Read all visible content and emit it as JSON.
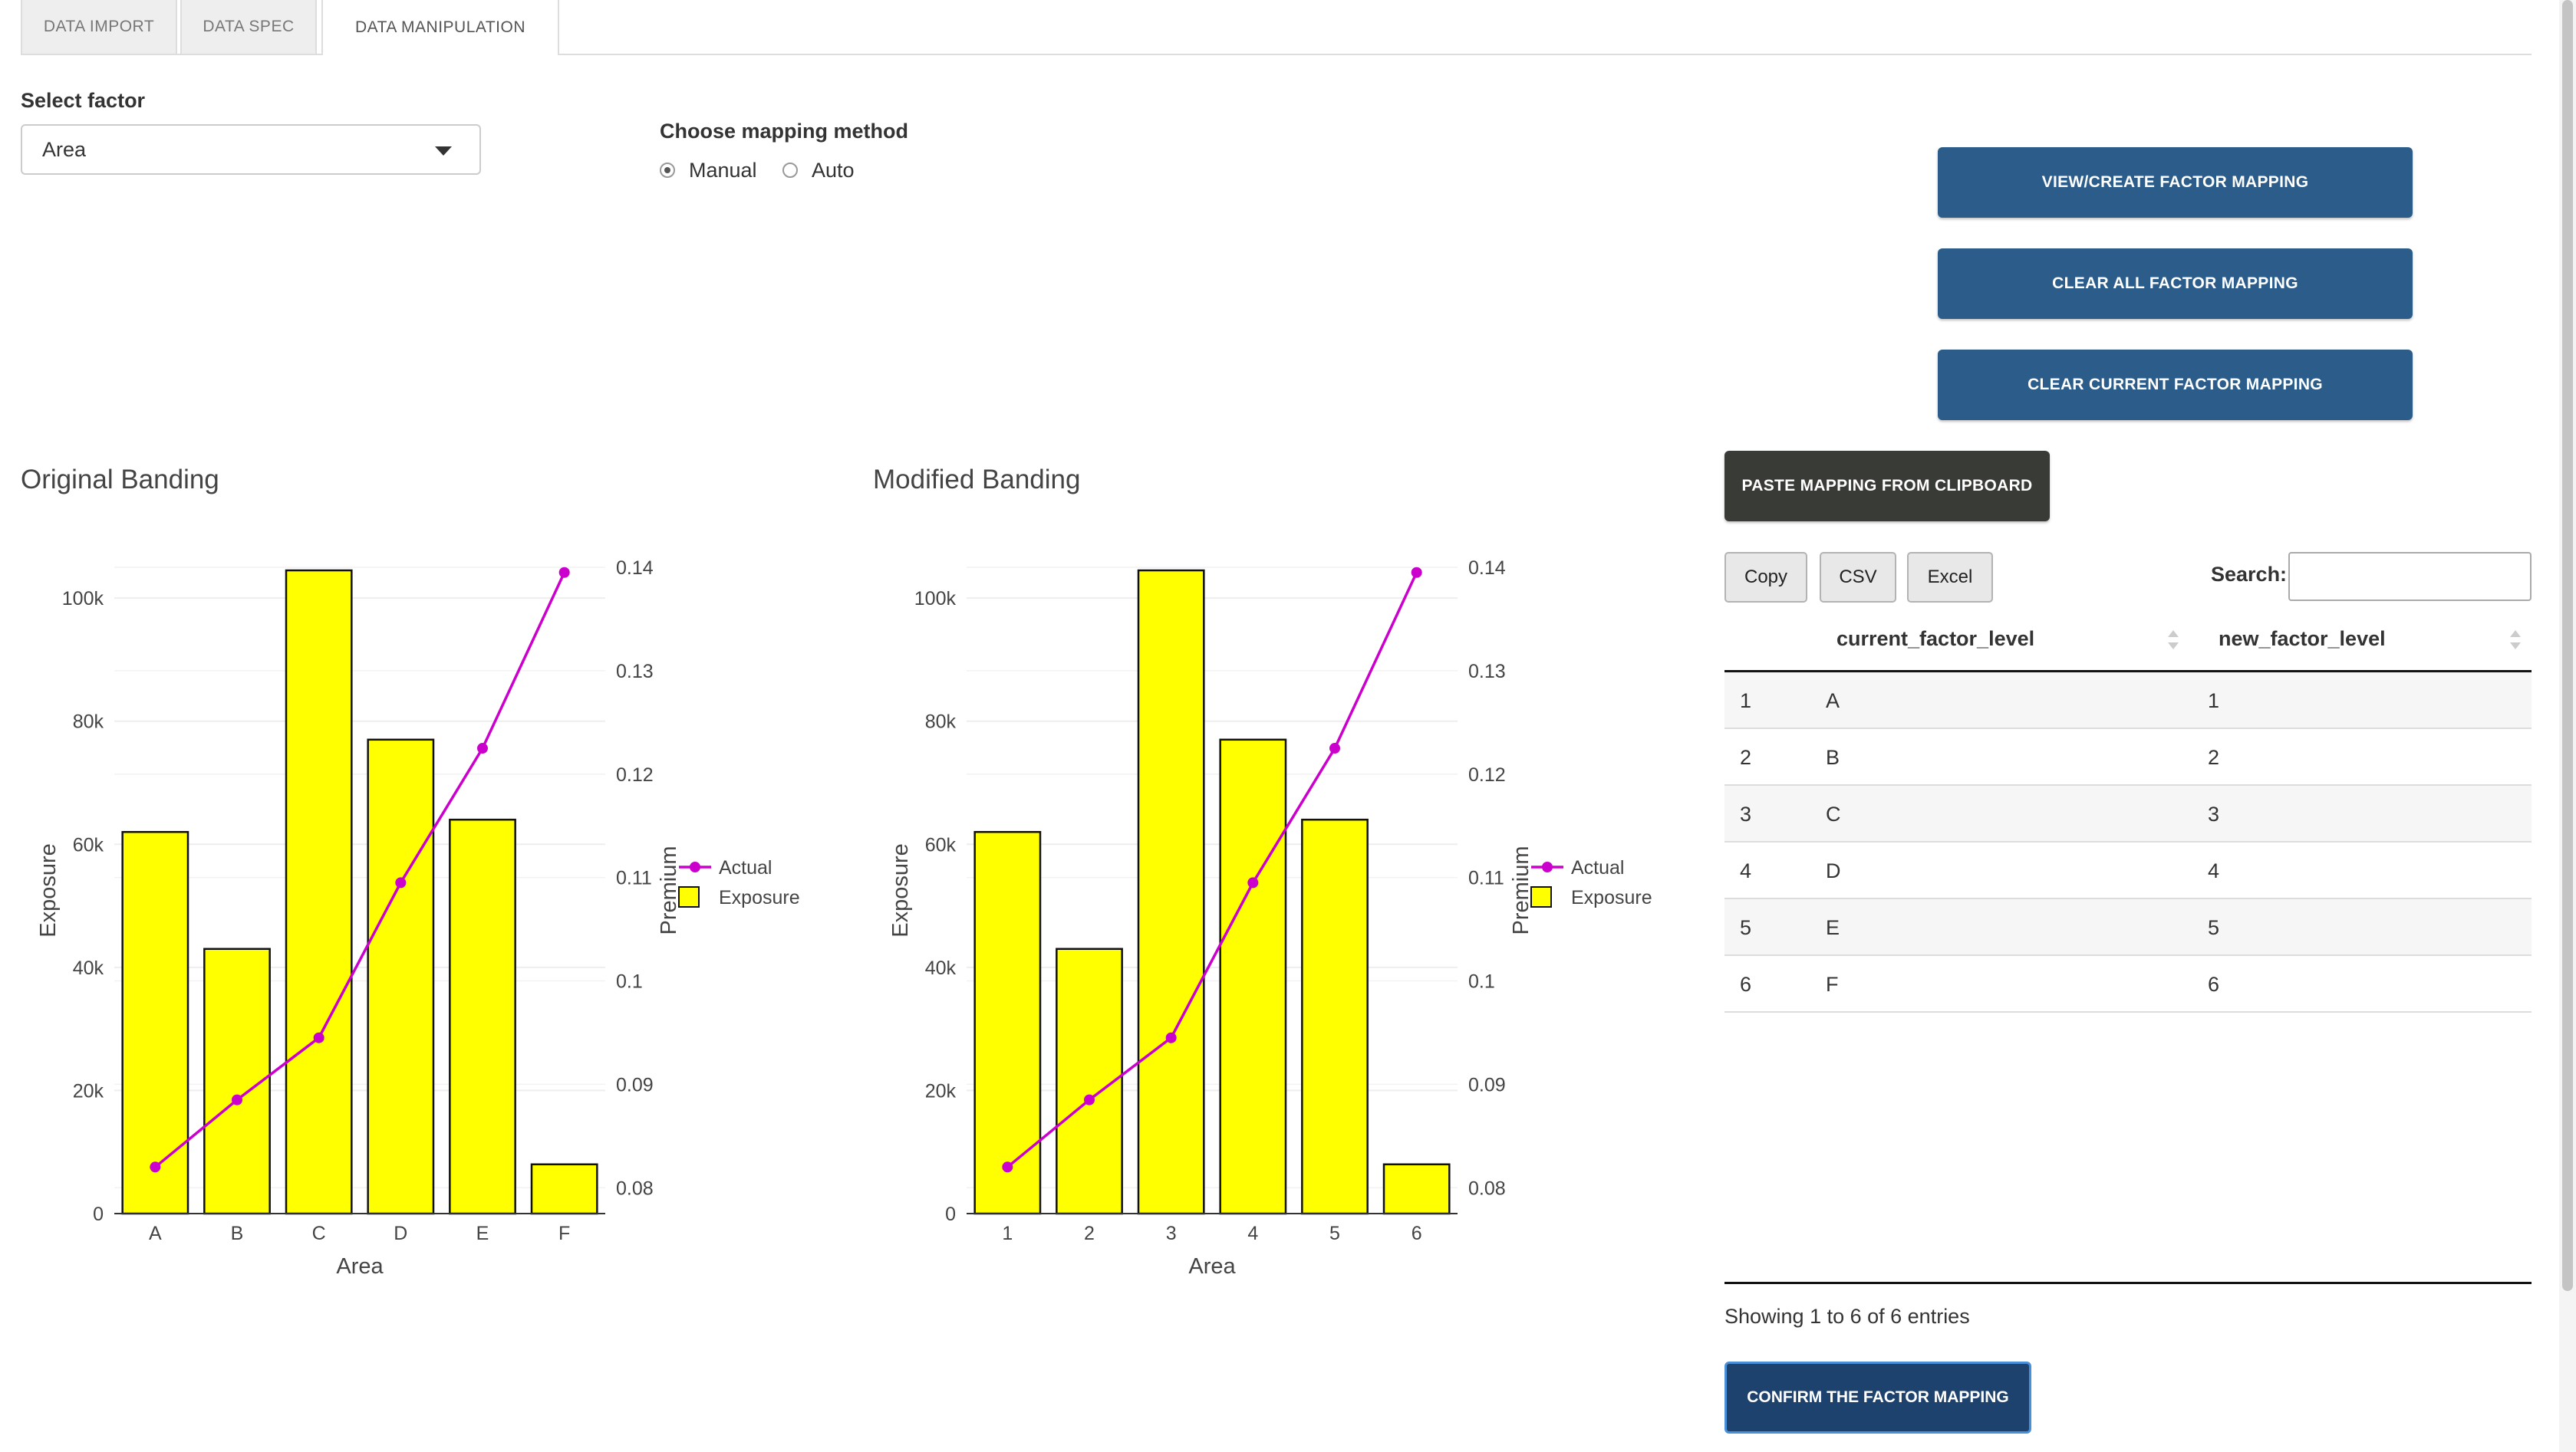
{
  "tabs": [
    {
      "label": "DATA IMPORT",
      "active": false
    },
    {
      "label": "DATA SPEC",
      "active": false
    },
    {
      "label": "DATA MANIPULATION",
      "active": true
    }
  ],
  "factor_select": {
    "label": "Select factor",
    "value": "Area"
  },
  "mapping_method": {
    "label": "Choose mapping method",
    "options": [
      {
        "label": "Manual",
        "selected": true
      },
      {
        "label": "Auto",
        "selected": false
      }
    ]
  },
  "buttons": {
    "view_create": "VIEW/CREATE FACTOR MAPPING",
    "clear_all": "CLEAR ALL FACTOR MAPPING",
    "clear_current": "CLEAR CURRENT FACTOR MAPPING",
    "paste": "PASTE MAPPING FROM CLIPBOARD",
    "confirm": "CONFIRM THE FACTOR MAPPING",
    "copy": "Copy",
    "csv": "CSV",
    "excel": "Excel"
  },
  "search": {
    "label": "Search:",
    "value": ""
  },
  "table": {
    "columns": [
      "",
      "current_factor_level",
      "new_factor_level"
    ],
    "rows": [
      {
        "index": "1",
        "current": "A",
        "new": "1"
      },
      {
        "index": "2",
        "current": "B",
        "new": "2"
      },
      {
        "index": "3",
        "current": "C",
        "new": "3"
      },
      {
        "index": "4",
        "current": "D",
        "new": "4"
      },
      {
        "index": "5",
        "current": "E",
        "new": "5"
      },
      {
        "index": "6",
        "current": "F",
        "new": "6"
      }
    ],
    "info": "Showing 1 to 6 of 6 entries"
  },
  "colors": {
    "bar": "#ffff00",
    "line": "#cc00cc",
    "primary_button": "#2c5d8a",
    "dark_button": "#393b36"
  },
  "chart_data": [
    {
      "type": "bar",
      "title": "Original Banding",
      "categories": [
        "A",
        "B",
        "C",
        "D",
        "E",
        "F"
      ],
      "series": [
        {
          "name": "Exposure",
          "type": "bar",
          "axis": "left",
          "values": [
            62000,
            43000,
            104500,
            77000,
            64000,
            8000
          ]
        },
        {
          "name": "Actual",
          "type": "line",
          "axis": "right",
          "values": [
            0.082,
            0.0885,
            0.0945,
            0.1095,
            0.1225,
            0.1395
          ]
        }
      ],
      "xlabel": "Area",
      "ylabel": "Exposure",
      "y2label": "Premium",
      "ylim": [
        0,
        105000
      ],
      "yticks": [
        0,
        20000,
        40000,
        60000,
        80000,
        100000
      ],
      "ytick_labels": [
        "0",
        "20k",
        "40k",
        "60k",
        "80k",
        "100k"
      ],
      "y2lim": [
        0.0775,
        0.14
      ],
      "y2ticks": [
        0.08,
        0.09,
        0.1,
        0.11,
        0.12,
        0.13,
        0.14
      ],
      "y2tick_labels": [
        "0.08",
        "0.09",
        "0.1",
        "0.11",
        "0.12",
        "0.13",
        "0.14"
      ],
      "legend": [
        "Actual",
        "Exposure"
      ],
      "legend_position": "right",
      "grid": true
    },
    {
      "type": "bar",
      "title": "Modified Banding",
      "categories": [
        "1",
        "2",
        "3",
        "4",
        "5",
        "6"
      ],
      "series": [
        {
          "name": "Exposure",
          "type": "bar",
          "axis": "left",
          "values": [
            62000,
            43000,
            104500,
            77000,
            64000,
            8000
          ]
        },
        {
          "name": "Actual",
          "type": "line",
          "axis": "right",
          "values": [
            0.082,
            0.0885,
            0.0945,
            0.1095,
            0.1225,
            0.1395
          ]
        }
      ],
      "xlabel": "Area",
      "ylabel": "Exposure",
      "y2label": "Premium",
      "ylim": [
        0,
        105000
      ],
      "yticks": [
        0,
        20000,
        40000,
        60000,
        80000,
        100000
      ],
      "ytick_labels": [
        "0",
        "20k",
        "40k",
        "60k",
        "80k",
        "100k"
      ],
      "y2lim": [
        0.0775,
        0.14
      ],
      "y2ticks": [
        0.08,
        0.09,
        0.1,
        0.11,
        0.12,
        0.13,
        0.14
      ],
      "y2tick_labels": [
        "0.08",
        "0.09",
        "0.1",
        "0.11",
        "0.12",
        "0.13",
        "0.14"
      ],
      "legend": [
        "Actual",
        "Exposure"
      ],
      "legend_position": "right",
      "grid": true
    }
  ]
}
